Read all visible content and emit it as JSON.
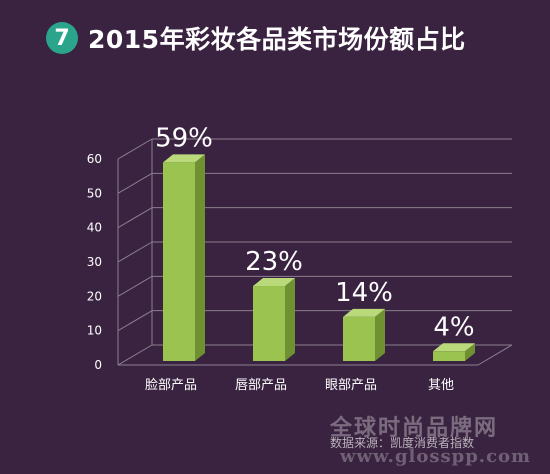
{
  "header": {
    "badge_number": "7",
    "title": "2015年彩妆各品类市场份额占比"
  },
  "chart_data": {
    "type": "bar",
    "categories": [
      "脸部产品",
      "唇部产品",
      "眼部产品",
      "其他"
    ],
    "values": [
      59,
      23,
      14,
      4
    ],
    "data_labels": [
      "59%",
      "23%",
      "14%",
      "4%"
    ],
    "ylim": [
      0,
      60
    ],
    "yticks": [
      0,
      10,
      20,
      30,
      40,
      50,
      60
    ],
    "grid": true,
    "bar_color": "#9bc34f"
  },
  "footer": {
    "source": "数据来源：凯度消费者指数",
    "watermark": "全球时尚品牌网",
    "watermark_url": "www.glosspp.com"
  },
  "colors": {
    "background": "#3a2340",
    "badge": "#2aa48b",
    "bar_front": "#9bc34f",
    "bar_side": "#6f9132",
    "bar_top": "#b9d97a",
    "grid": "#8a7f8e"
  }
}
